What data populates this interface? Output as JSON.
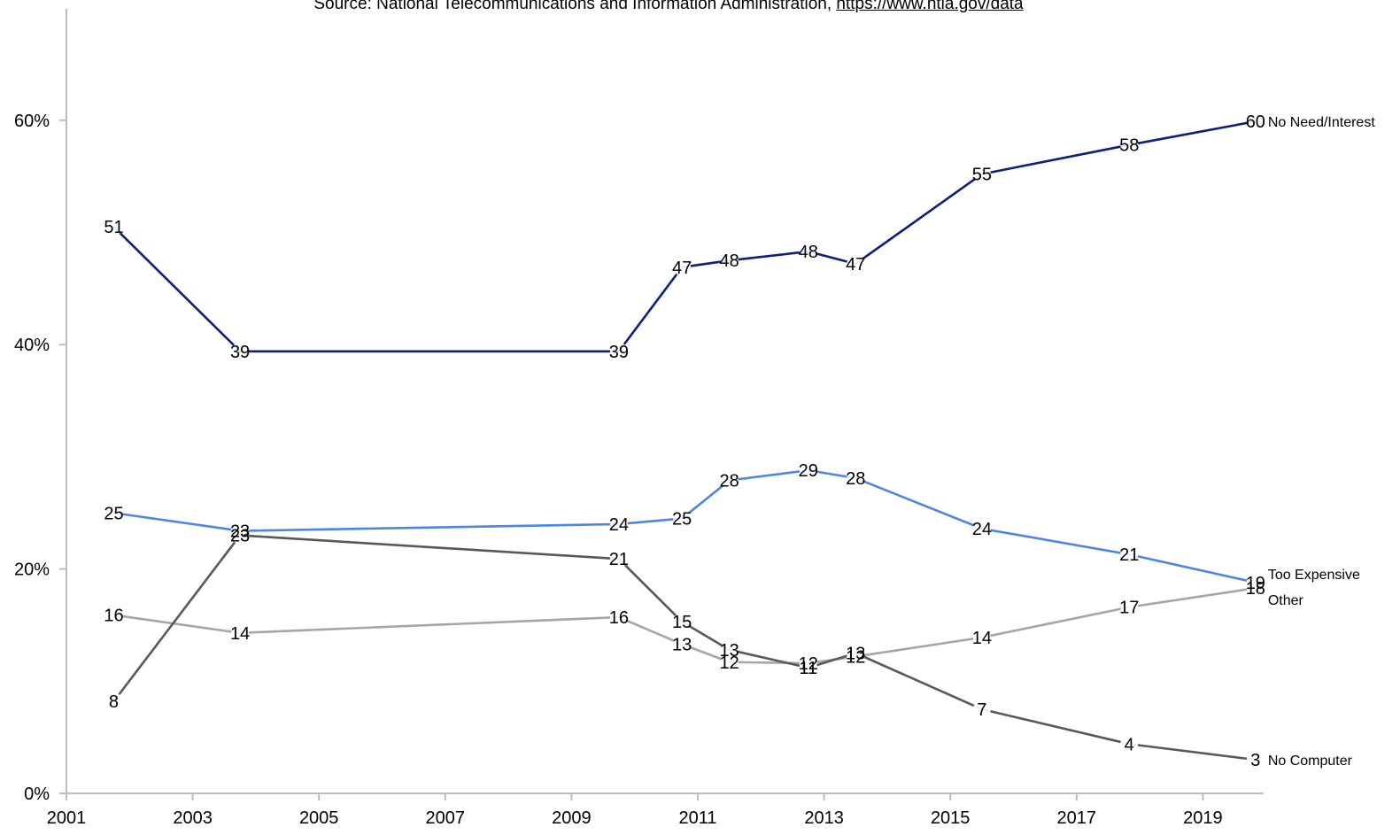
{
  "source": {
    "prefix": "Source: National Telecommunications and Information Administration, ",
    "link_text": "https://www.ntia.gov/data"
  },
  "chart_data": {
    "type": "line",
    "xlim": [
      2001,
      2020
    ],
    "ylim": [
      0,
      70
    ],
    "x_ticks": [
      2001,
      2003,
      2005,
      2007,
      2009,
      2011,
      2013,
      2015,
      2017,
      2019
    ],
    "y_ticks": [
      {
        "value": 0,
        "label": "0%"
      },
      {
        "value": 20,
        "label": "20%"
      },
      {
        "value": 40,
        "label": "40%"
      },
      {
        "value": 60,
        "label": "60%"
      }
    ],
    "grid": false,
    "x": [
      "2001-10",
      "2003-10",
      "2009-10",
      "2010-10",
      "2011-07",
      "2012-10",
      "2013-07",
      "2015-07",
      "2017-11",
      "2019-11"
    ],
    "series": [
      {
        "name": "No Need/Interest",
        "color": "#0d1f7a",
        "values": [
          51,
          39,
          39,
          47,
          48,
          48,
          47,
          55,
          58,
          60
        ]
      },
      {
        "name": "Too Expensive",
        "color": "#4a86e8",
        "values": [
          25,
          23,
          24,
          25,
          28,
          29,
          28,
          24,
          21,
          19
        ]
      },
      {
        "name": "Other",
        "color": "#a6a6a6",
        "values": [
          16,
          14,
          16,
          13,
          12,
          12,
          12,
          14,
          17,
          18
        ]
      },
      {
        "name": "No Computer",
        "color": "#595959",
        "values": [
          8,
          23,
          21,
          15,
          13,
          11,
          13,
          7,
          4,
          3
        ]
      }
    ],
    "plotted_values": {
      "No Need/Interest": [
        50.5,
        39.4,
        39.4,
        46.9,
        47.5,
        48.3,
        47.2,
        55.2,
        57.8,
        59.9
      ],
      "Too Expensive": [
        25.0,
        23.4,
        24.0,
        24.5,
        27.9,
        28.8,
        28.1,
        23.6,
        21.3,
        18.8
      ],
      "Other": [
        15.9,
        14.3,
        15.7,
        13.3,
        11.7,
        11.6,
        12.2,
        13.9,
        16.6,
        18.3
      ],
      "No Computer": [
        8.2,
        23.0,
        20.9,
        15.3,
        12.8,
        11.2,
        12.5,
        7.5,
        4.4,
        3.0
      ]
    }
  }
}
